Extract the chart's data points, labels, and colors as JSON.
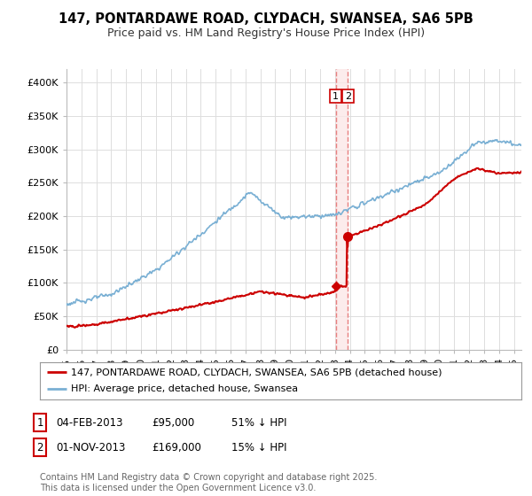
{
  "title": "147, PONTARDAWE ROAD, CLYDACH, SWANSEA, SA6 5PB",
  "subtitle": "Price paid vs. HM Land Registry's House Price Index (HPI)",
  "ylabel_ticks": [
    "£0",
    "£50K",
    "£100K",
    "£150K",
    "£200K",
    "£250K",
    "£300K",
    "£350K",
    "£400K"
  ],
  "ytick_values": [
    0,
    50000,
    100000,
    150000,
    200000,
    250000,
    300000,
    350000,
    400000
  ],
  "ylim": [
    0,
    420000
  ],
  "xlim_start": 1995.0,
  "xlim_end": 2025.5,
  "sale1_date": 2013.09,
  "sale1_price": 95000,
  "sale2_date": 2013.83,
  "sale2_price": 169000,
  "hpi_color": "#7ab0d4",
  "price_color": "#cc0000",
  "vline_color": "#e88080",
  "vshade_color": "#fce8e8",
  "legend_line1": "147, PONTARDAWE ROAD, CLYDACH, SWANSEA, SA6 5PB (detached house)",
  "legend_line2": "HPI: Average price, detached house, Swansea",
  "sale1_annotation_date": "04-FEB-2013",
  "sale1_annotation_price": "£95,000",
  "sale1_annotation_pct": "51% ↓ HPI",
  "sale2_annotation_date": "01-NOV-2013",
  "sale2_annotation_price": "£169,000",
  "sale2_annotation_pct": "15% ↓ HPI",
  "footnote": "Contains HM Land Registry data © Crown copyright and database right 2025.\nThis data is licensed under the Open Government Licence v3.0.",
  "background_color": "#ffffff",
  "grid_color": "#dddddd",
  "title_fontsize": 10.5,
  "subtitle_fontsize": 9,
  "tick_fontsize": 8,
  "legend_fontsize": 8,
  "annotation_fontsize": 8.5,
  "footnote_fontsize": 7
}
